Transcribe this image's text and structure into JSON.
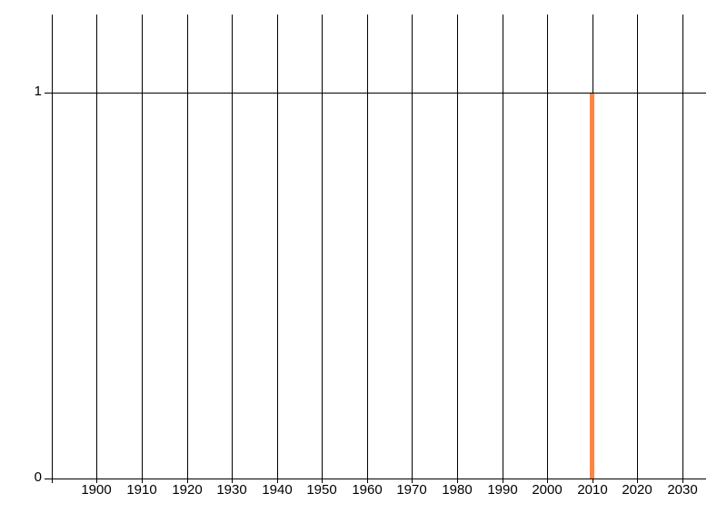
{
  "chart_data": {
    "type": "bar",
    "title": "",
    "xlabel": "",
    "ylabel": "",
    "legend": "none",
    "grid": true,
    "points": [
      {
        "x": 2010,
        "y": 1
      }
    ],
    "x_gridline_values": [
      1890,
      1900,
      1910,
      1920,
      1930,
      1940,
      1950,
      1960,
      1970,
      1980,
      1990,
      2000,
      2010,
      2020,
      2030
    ],
    "x_ticks": [
      {
        "value": 1900,
        "label": "1900"
      },
      {
        "value": 1910,
        "label": "1910"
      },
      {
        "value": 1920,
        "label": "1920"
      },
      {
        "value": 1930,
        "label": "1930"
      },
      {
        "value": 1940,
        "label": "1940"
      },
      {
        "value": 1950,
        "label": "1950"
      },
      {
        "value": 1960,
        "label": "1960"
      },
      {
        "value": 1970,
        "label": "1970"
      },
      {
        "value": 1980,
        "label": "1980"
      },
      {
        "value": 1990,
        "label": "1990"
      },
      {
        "value": 2000,
        "label": "2000"
      },
      {
        "value": 2010,
        "label": "2010"
      },
      {
        "value": 2020,
        "label": "2020"
      },
      {
        "value": 2030,
        "label": "2030"
      }
    ],
    "y_ticks": [
      {
        "value": 0,
        "label": "0"
      },
      {
        "value": 1,
        "label": "1"
      }
    ],
    "xlim": [
      1888.4,
      2035.3
    ],
    "ylim": [
      0,
      1.2
    ],
    "colors": {
      "bar": "#fb8542",
      "gridline": "#000000",
      "axis": "#000000",
      "text": "#000000",
      "background": "#ffffff"
    }
  }
}
